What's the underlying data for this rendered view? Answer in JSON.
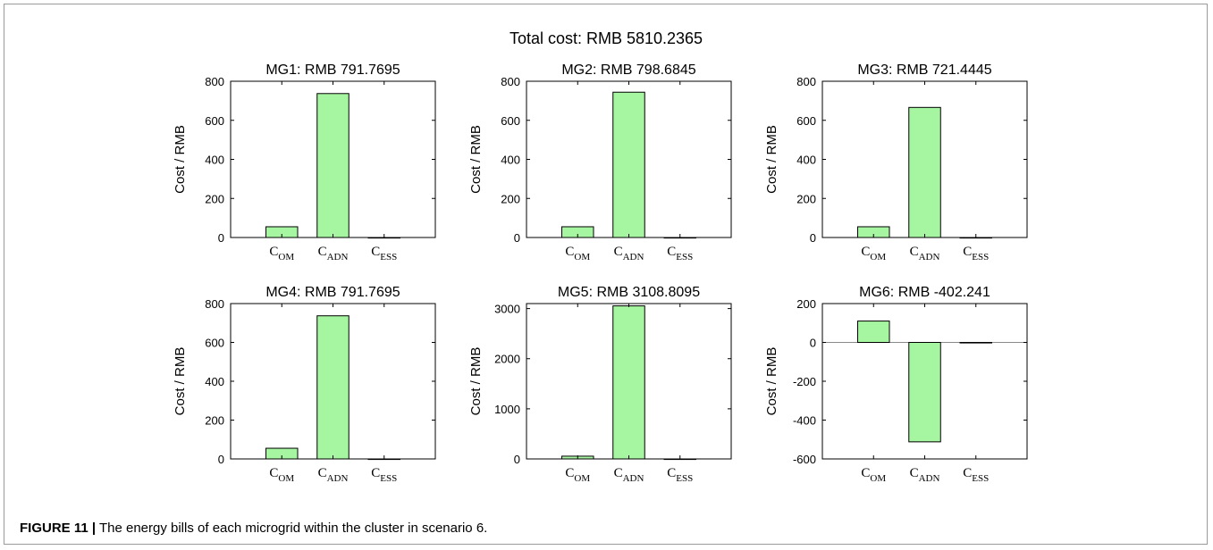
{
  "suptitle": "Total cost: RMB 5810.2365",
  "caption": {
    "label": "FIGURE 11 |",
    "text": " The energy bills of each microgrid within the cluster in scenario 6."
  },
  "style": {
    "bar_fill": "#a6f5a0",
    "bar_stroke": "#000000",
    "axis_color": "#000000",
    "zero_line_color": "#8a8a8a"
  },
  "chart_data": [
    {
      "type": "bar",
      "title": "MG1: RMB 791.7695",
      "ylabel": "Cost / RMB",
      "categories": [
        {
          "base": "C",
          "sub": "OM"
        },
        {
          "base": "C",
          "sub": "ADN"
        },
        {
          "base": "C",
          "sub": "ESS"
        }
      ],
      "values": [
        55,
        737,
        0
      ],
      "ylim": [
        0,
        800
      ],
      "yticks": [
        0,
        200,
        400,
        600,
        800
      ]
    },
    {
      "type": "bar",
      "title": "MG2: RMB 798.6845",
      "ylabel": "Cost / RMB",
      "categories": [
        {
          "base": "C",
          "sub": "OM"
        },
        {
          "base": "C",
          "sub": "ADN"
        },
        {
          "base": "C",
          "sub": "ESS"
        }
      ],
      "values": [
        55,
        744,
        0
      ],
      "ylim": [
        0,
        800
      ],
      "yticks": [
        0,
        200,
        400,
        600,
        800
      ]
    },
    {
      "type": "bar",
      "title": "MG3: RMB 721.4445",
      "ylabel": "Cost / RMB",
      "categories": [
        {
          "base": "C",
          "sub": "OM"
        },
        {
          "base": "C",
          "sub": "ADN"
        },
        {
          "base": "C",
          "sub": "ESS"
        }
      ],
      "values": [
        55,
        666,
        0
      ],
      "ylim": [
        0,
        800
      ],
      "yticks": [
        0,
        200,
        400,
        600,
        800
      ]
    },
    {
      "type": "bar",
      "title": "MG4: RMB 791.7695",
      "ylabel": "Cost / RMB",
      "categories": [
        {
          "base": "C",
          "sub": "OM"
        },
        {
          "base": "C",
          "sub": "ADN"
        },
        {
          "base": "C",
          "sub": "ESS"
        }
      ],
      "values": [
        55,
        737,
        0
      ],
      "ylim": [
        0,
        800
      ],
      "yticks": [
        0,
        200,
        400,
        600,
        800
      ]
    },
    {
      "type": "bar",
      "title": "MG5: RMB 3108.8095",
      "ylabel": "Cost / RMB",
      "categories": [
        {
          "base": "C",
          "sub": "OM"
        },
        {
          "base": "C",
          "sub": "ADN"
        },
        {
          "base": "C",
          "sub": "ESS"
        }
      ],
      "values": [
        55,
        3054,
        0
      ],
      "ylim": [
        0,
        3100
      ],
      "yticks": [
        0,
        1000,
        2000,
        3000
      ]
    },
    {
      "type": "bar",
      "title": "MG6: RMB -402.241",
      "ylabel": "Cost / RMB",
      "categories": [
        {
          "base": "C",
          "sub": "OM"
        },
        {
          "base": "C",
          "sub": "ADN"
        },
        {
          "base": "C",
          "sub": "ESS"
        }
      ],
      "values": [
        110,
        -512,
        0
      ],
      "ylim": [
        -600,
        200
      ],
      "yticks": [
        -600,
        -400,
        -200,
        0,
        200
      ]
    }
  ]
}
